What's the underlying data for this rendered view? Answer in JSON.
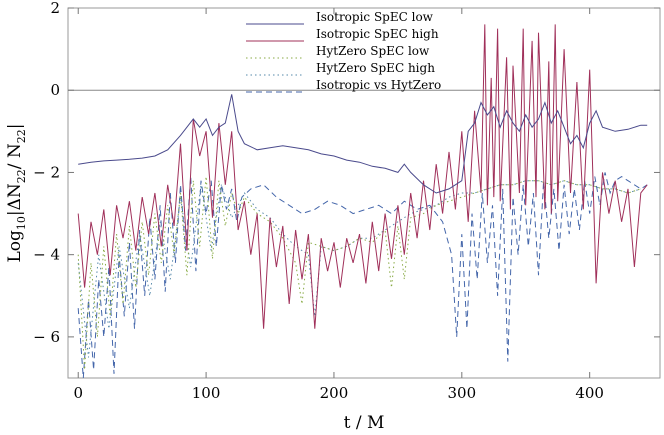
{
  "chart_data": {
    "type": "line",
    "title": "",
    "xlabel": "t / M",
    "ylabel_parts": {
      "main": "Log",
      "sub": "10",
      "rest": "|ΔN",
      "sub2": "22",
      "mid": "/ N",
      "sub3": "22",
      "end": "|"
    },
    "xlim": [
      -8,
      455
    ],
    "ylim": [
      -7,
      2
    ],
    "xticks": [
      0,
      100,
      200,
      300,
      400
    ],
    "yticks": [
      -6,
      -4,
      -2,
      0,
      2
    ],
    "ytick_labels": [
      "− 6",
      "− 4",
      "− 2",
      "0",
      "2"
    ],
    "grid": false,
    "legend_position": "top-center",
    "series": [
      {
        "name": "Isotropic SpEC low",
        "color": "#4a4a8c",
        "style": "solid",
        "x": [
          0,
          10,
          20,
          30,
          40,
          50,
          60,
          70,
          80,
          90,
          95,
          100,
          105,
          110,
          115,
          120,
          125,
          130,
          140,
          150,
          160,
          170,
          180,
          190,
          200,
          210,
          220,
          230,
          240,
          250,
          255,
          260,
          270,
          280,
          290,
          300,
          305,
          310,
          315,
          320,
          325,
          330,
          335,
          340,
          345,
          350,
          355,
          360,
          365,
          370,
          375,
          380,
          385,
          390,
          395,
          400,
          405,
          410,
          420,
          430,
          440,
          445
        ],
        "y": [
          -1.8,
          -1.75,
          -1.72,
          -1.7,
          -1.68,
          -1.65,
          -1.6,
          -1.45,
          -1.1,
          -0.7,
          -0.9,
          -0.7,
          -1.1,
          -0.9,
          -0.8,
          -0.1,
          -1.0,
          -1.3,
          -1.45,
          -1.4,
          -1.35,
          -1.4,
          -1.45,
          -1.55,
          -1.6,
          -1.7,
          -1.75,
          -1.85,
          -1.9,
          -2.0,
          -1.8,
          -2.0,
          -2.3,
          -2.5,
          -2.4,
          -2.2,
          -1.0,
          -0.8,
          -0.3,
          -0.6,
          -0.4,
          -0.9,
          -0.5,
          -0.8,
          -1.0,
          -0.6,
          -0.9,
          -0.7,
          -0.3,
          -0.8,
          -0.5,
          -0.9,
          -1.3,
          -1.1,
          -1.4,
          -0.8,
          -0.5,
          -0.9,
          -1.0,
          -0.95,
          -0.85,
          -0.85
        ]
      },
      {
        "name": "Isotropic SpEC high",
        "color": "#a0305a",
        "style": "solid",
        "x": [
          0,
          5,
          10,
          15,
          20,
          25,
          30,
          35,
          40,
          45,
          50,
          55,
          60,
          65,
          70,
          75,
          80,
          85,
          90,
          95,
          100,
          105,
          110,
          115,
          120,
          125,
          130,
          135,
          140,
          145,
          150,
          155,
          160,
          165,
          170,
          175,
          180,
          185,
          190,
          195,
          200,
          205,
          210,
          215,
          220,
          225,
          230,
          235,
          240,
          245,
          250,
          255,
          260,
          265,
          270,
          275,
          280,
          285,
          290,
          295,
          300,
          305,
          310,
          315,
          318,
          320,
          323,
          325,
          328,
          330,
          335,
          338,
          340,
          345,
          348,
          350,
          355,
          358,
          360,
          365,
          368,
          370,
          373,
          375,
          380,
          385,
          390,
          395,
          400,
          405,
          410,
          415,
          420,
          425,
          430,
          435,
          440,
          445
        ],
        "y": [
          -3.0,
          -4.8,
          -3.2,
          -4.0,
          -2.9,
          -4.5,
          -2.8,
          -3.6,
          -2.7,
          -3.9,
          -2.6,
          -3.5,
          -2.5,
          -3.8,
          -2.3,
          -3.3,
          -1.3,
          -3.9,
          -0.7,
          -1.6,
          -1.0,
          -3.1,
          -0.8,
          -2.3,
          -1.0,
          -3.4,
          -2.7,
          -4.0,
          -3.0,
          -5.8,
          -3.1,
          -4.3,
          -3.3,
          -5.2,
          -3.4,
          -4.6,
          -3.5,
          -5.8,
          -3.6,
          -4.4,
          -3.7,
          -4.8,
          -3.6,
          -4.2,
          -3.5,
          -4.7,
          -3.2,
          -4.4,
          -3.0,
          -4.1,
          -2.8,
          -4.0,
          -2.5,
          -3.6,
          -2.2,
          -3.4,
          -1.8,
          -3.0,
          -1.5,
          -2.9,
          -1.0,
          -3.2,
          -0.5,
          -2.5,
          1.6,
          -2.8,
          0.3,
          -2.6,
          1.5,
          -2.7,
          0.8,
          -2.9,
          0.6,
          -2.5,
          1.5,
          -2.8,
          1.2,
          -2.6,
          1.4,
          -2.9,
          0.7,
          -3.0,
          1.6,
          -2.7,
          1.0,
          -2.5,
          0.2,
          -2.9,
          0.5,
          -4.7,
          -2.0,
          -3.0,
          -2.2,
          -3.2,
          -2.4,
          -4.3,
          -2.5,
          -2.3
        ]
      },
      {
        "name": "HytZero SpEC low",
        "color": "#88aa44",
        "style": "dotted",
        "x": [
          0,
          5,
          10,
          15,
          20,
          25,
          30,
          35,
          40,
          45,
          50,
          55,
          60,
          65,
          70,
          75,
          80,
          85,
          90,
          95,
          100,
          105,
          110,
          115,
          120,
          125,
          130,
          140,
          150,
          160,
          170,
          175,
          180,
          190,
          200,
          210,
          220,
          230,
          240,
          245,
          250,
          255,
          260,
          270,
          280,
          290,
          300,
          310,
          320,
          330,
          340,
          350,
          360,
          370,
          380,
          390,
          400,
          410,
          420,
          430,
          440
        ],
        "y": [
          -4.0,
          -6.8,
          -4.2,
          -6.0,
          -3.8,
          -5.5,
          -3.5,
          -5.2,
          -3.3,
          -4.8,
          -3.2,
          -4.5,
          -3.0,
          -4.2,
          -2.8,
          -4.0,
          -2.5,
          -4.5,
          -2.2,
          -3.8,
          -2.1,
          -4.1,
          -2.2,
          -3.3,
          -2.5,
          -3.0,
          -2.6,
          -3.0,
          -3.2,
          -3.6,
          -4.2,
          -5.2,
          -3.7,
          -3.8,
          -3.9,
          -3.8,
          -3.6,
          -3.7,
          -3.4,
          -4.8,
          -3.3,
          -4.6,
          -3.1,
          -3.0,
          -2.8,
          -2.7,
          -2.6,
          -2.5,
          -2.4,
          -2.3,
          -2.3,
          -2.2,
          -2.2,
          -2.3,
          -2.2,
          -2.3,
          -2.3,
          -2.4,
          -2.4,
          -2.5,
          -2.4
        ]
      },
      {
        "name": "HytZero SpEC high",
        "color": "#5588aa",
        "style": "dotted",
        "x": [
          0,
          8,
          16,
          24,
          32,
          40,
          48,
          56,
          64,
          72,
          80,
          88,
          96,
          104,
          112,
          120,
          130,
          140,
          150,
          160,
          170,
          180,
          185,
          190,
          200,
          210,
          220,
          230,
          240,
          250,
          260,
          270,
          280,
          290,
          300,
          310,
          320,
          330,
          340,
          350,
          360,
          370,
          380,
          390,
          400,
          410,
          420,
          430,
          440
        ],
        "y": [
          -4.2,
          -6.5,
          -4.0,
          -5.8,
          -3.8,
          -5.3,
          -3.5,
          -5.0,
          -3.2,
          -4.6,
          -2.6,
          -4.3,
          -2.3,
          -3.9,
          -2.3,
          -3.1,
          -2.5,
          -2.9,
          -3.1,
          -3.5,
          -3.8,
          -4.0,
          -5.5,
          -3.8,
          -3.9,
          -3.8,
          -3.6,
          -3.6,
          -3.4,
          -3.2,
          -3.0,
          -2.9,
          -2.8,
          -2.6,
          -2.5,
          -2.5,
          -2.4,
          -2.3,
          -2.3,
          -2.2,
          -2.2,
          -2.3,
          -2.2,
          -2.3,
          -2.3,
          -2.4,
          -2.4,
          -2.5,
          -2.4
        ]
      },
      {
        "name": "Isotropic vs HytZero",
        "color": "#4466aa",
        "style": "dashed",
        "x": [
          0,
          4,
          8,
          12,
          16,
          20,
          24,
          28,
          32,
          36,
          40,
          44,
          48,
          52,
          56,
          60,
          64,
          68,
          72,
          76,
          80,
          84,
          88,
          92,
          96,
          100,
          104,
          108,
          112,
          116,
          120,
          124,
          128,
          135,
          145,
          155,
          165,
          175,
          185,
          195,
          205,
          215,
          225,
          235,
          245,
          255,
          265,
          275,
          285,
          292,
          296,
          300,
          304,
          308,
          312,
          316,
          320,
          324,
          328,
          332,
          336,
          340,
          344,
          348,
          352,
          356,
          360,
          364,
          368,
          372,
          376,
          380,
          384,
          388,
          392,
          396,
          400,
          404,
          408,
          412,
          416,
          420,
          425,
          430,
          435,
          440,
          445
        ],
        "y": [
          -5.3,
          -7.0,
          -5.1,
          -6.8,
          -4.6,
          -6.0,
          -4.3,
          -6.9,
          -4.0,
          -5.5,
          -3.7,
          -5.8,
          -3.4,
          -5.0,
          -3.1,
          -4.6,
          -2.8,
          -4.9,
          -2.5,
          -4.2,
          -2.3,
          -3.9,
          -2.1,
          -4.4,
          -2.2,
          -3.0,
          -2.2,
          -3.8,
          -2.3,
          -2.9,
          -2.4,
          -3.2,
          -2.6,
          -2.4,
          -2.3,
          -2.6,
          -2.8,
          -3.0,
          -2.9,
          -2.7,
          -2.8,
          -3.0,
          -2.9,
          -2.8,
          -3.0,
          -2.7,
          -2.9,
          -2.8,
          -3.2,
          -4.0,
          -6.0,
          -3.5,
          -5.8,
          -3.0,
          -4.6,
          -2.5,
          -4.2,
          -2.8,
          -5.0,
          -2.4,
          -6.6,
          -2.6,
          -4.0,
          -2.3,
          -3.8,
          -2.5,
          -4.5,
          -2.2,
          -3.6,
          -2.4,
          -3.9,
          -2.3,
          -3.5,
          -2.4,
          -3.4,
          -2.2,
          -3.0,
          -2.1,
          -2.8,
          -2.0,
          -2.5,
          -2.2,
          -2.1,
          -2.2,
          -2.3,
          -2.4,
          -2.3
        ]
      }
    ]
  }
}
